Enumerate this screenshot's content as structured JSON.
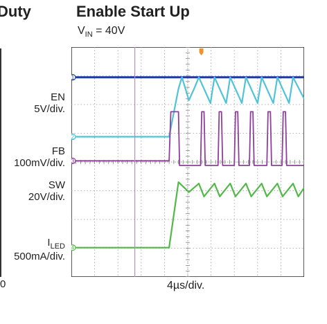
{
  "left_partial_title": "Duty",
  "left_zero_tick": "0",
  "chart_data": {
    "type": "line",
    "title": "Enable Start Up",
    "subtitle": "VIN = 40V",
    "subtitle_main": "V",
    "subtitle_sub": "IN",
    "subtitle_rest": " = 40V",
    "xlabel": "4µs/div.",
    "x_unit": "µs",
    "xlim": [
      -20,
      20
    ],
    "ylim": [
      -4,
      4
    ],
    "grid": true,
    "trigger_time": -1.0,
    "channels": [
      {
        "id": 1,
        "name": "EN",
        "scale": "5V/div.",
        "color": "#1f3fa0",
        "baseline": 2.95,
        "points": [
          [
            -20,
            2.95
          ],
          [
            20,
            2.95
          ]
        ]
      },
      {
        "id": 2,
        "name": "FB",
        "scale": "100mV/div.",
        "color": "#4fc3d8",
        "baseline": 0.88,
        "points": [
          [
            -20,
            0.88
          ],
          [
            -3.2,
            0.88
          ],
          [
            -1.6,
            2.55
          ],
          [
            -1.0,
            2.95
          ],
          [
            0.2,
            2.15
          ],
          [
            1.2,
            2.6
          ],
          [
            1.9,
            2.95
          ],
          [
            3.9,
            2.05
          ],
          [
            4.6,
            2.95
          ],
          [
            6.6,
            2.05
          ],
          [
            7.3,
            2.95
          ],
          [
            9.3,
            2.05
          ],
          [
            10.0,
            2.95
          ],
          [
            12.0,
            2.05
          ],
          [
            12.7,
            2.95
          ],
          [
            14.7,
            2.05
          ],
          [
            15.4,
            2.95
          ],
          [
            17.4,
            2.05
          ],
          [
            18.1,
            2.95
          ],
          [
            20.0,
            2.2
          ]
        ]
      },
      {
        "id": 3,
        "name": "SW",
        "scale": "20V/div.",
        "color": "#8e3f9a",
        "baseline": 0.04,
        "points": [
          [
            -20,
            0.04
          ],
          [
            -3.2,
            0.04
          ],
          [
            -2.9,
            1.75
          ],
          [
            -1.6,
            1.75
          ],
          [
            -1.4,
            -0.12
          ],
          [
            2.2,
            -0.12
          ],
          [
            2.4,
            1.75
          ],
          [
            2.8,
            1.75
          ],
          [
            3.0,
            -0.12
          ],
          [
            5.2,
            -0.12
          ],
          [
            5.4,
            1.75
          ],
          [
            5.8,
            1.75
          ],
          [
            6.0,
            -0.12
          ],
          [
            8.0,
            -0.12
          ],
          [
            8.2,
            1.75
          ],
          [
            8.6,
            1.75
          ],
          [
            8.8,
            -0.12
          ],
          [
            10.6,
            -0.12
          ],
          [
            10.8,
            1.75
          ],
          [
            11.2,
            1.75
          ],
          [
            11.4,
            -0.12
          ],
          [
            13.6,
            -0.12
          ],
          [
            13.8,
            1.75
          ],
          [
            14.2,
            1.75
          ],
          [
            14.4,
            -0.12
          ],
          [
            16.2,
            -0.12
          ],
          [
            16.4,
            1.75
          ],
          [
            16.8,
            1.75
          ],
          [
            17.0,
            -0.12
          ],
          [
            20,
            -0.12
          ]
        ]
      },
      {
        "id": 4,
        "name": "ILED",
        "name_main": "I",
        "name_sub": "LED",
        "scale": "500mA/div.",
        "color": "#52b848",
        "baseline": -2.98,
        "points": [
          [
            -20,
            -2.98
          ],
          [
            -3.2,
            -2.98
          ],
          [
            -1.6,
            -0.7
          ],
          [
            0.2,
            -1.05
          ],
          [
            1.9,
            -0.75
          ],
          [
            2.8,
            -1.2
          ],
          [
            4.6,
            -0.75
          ],
          [
            5.5,
            -1.2
          ],
          [
            7.3,
            -0.75
          ],
          [
            8.2,
            -1.2
          ],
          [
            10.0,
            -0.75
          ],
          [
            10.9,
            -1.2
          ],
          [
            12.7,
            -0.75
          ],
          [
            13.6,
            -1.2
          ],
          [
            15.4,
            -0.75
          ],
          [
            16.3,
            -1.2
          ],
          [
            18.1,
            -0.75
          ],
          [
            19.0,
            -1.2
          ],
          [
            20,
            -0.9
          ]
        ]
      }
    ]
  }
}
